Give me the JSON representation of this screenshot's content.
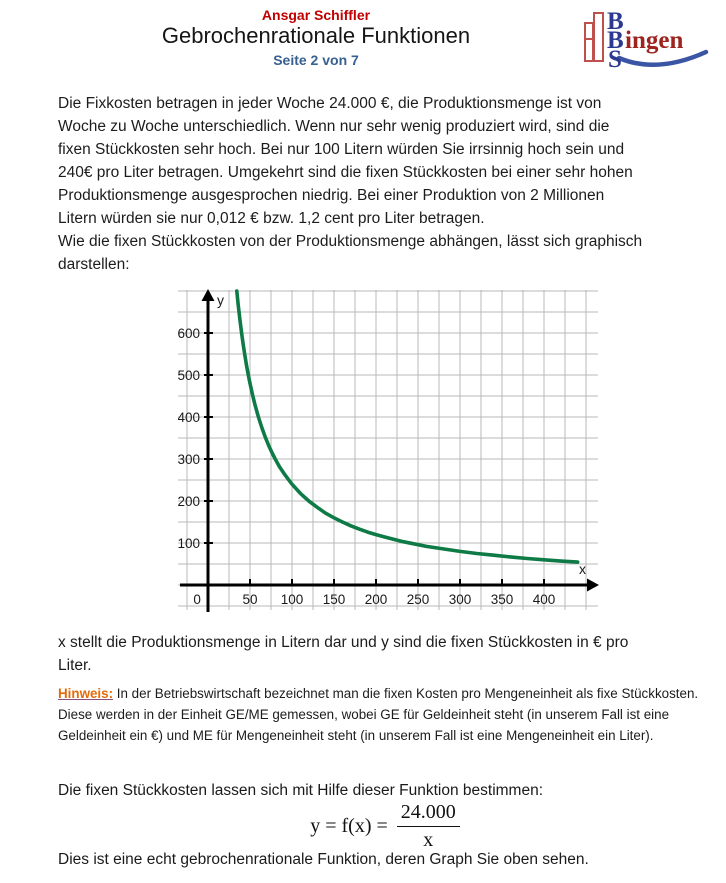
{
  "theme": {
    "text": "#1a1a1a",
    "accent_red": "#c00000",
    "accent_blue": "#376092",
    "hinweis_orange": "#e36c0a",
    "hinweis_underline": "#8a4f7d",
    "logo_blue": "#2b3990",
    "logo_red": "#9e2420",
    "tower_red": "#c0504d",
    "swoosh_blue": "#3b55a5"
  },
  "header": {
    "author": "Ansgar Schiffler",
    "title": "Gebrochenrationale Funktionen",
    "page_info": "Seite 2 von 7"
  },
  "logo": {
    "letter_top": "B",
    "letter_mid": "B",
    "letter_bottom": "S",
    "suffix": "ingen"
  },
  "intro": {
    "lines": [
      "Die Fixkosten betragen in jeder Woche 24.000 €, die Produktionsmenge ist von",
      "Woche zu Woche unterschiedlich. Wenn nur sehr wenig produziert wird, sind die",
      "fixen Stückkosten sehr hoch. Bei nur 100 Litern würden Sie irrsinnig hoch sein und",
      "240€ pro Liter betragen. Umgekehrt sind die fixen Stückkosten bei einer sehr hohen",
      "Produktionsmenge ausgesprochen niedrig. Bei einer Produktion von 2 Millionen",
      "Litern würden sie nur 0,012 € bzw. 1,2 cent pro Liter betragen.",
      "Wie die fixen Stückkosten von der Produktionsmenge abhängen, lässt sich graphisch",
      "darstellen:"
    ]
  },
  "chart_data": {
    "type": "line",
    "title": "",
    "xlabel": "x",
    "ylabel": "y",
    "function": "y = 24000 / x",
    "xlim": [
      -36,
      469
    ],
    "ylim": [
      -64,
      707
    ],
    "x_tick_labels": [
      50,
      100,
      150,
      200,
      250,
      300,
      350,
      400
    ],
    "origin_label": "0",
    "y_tick_labels": [
      100,
      200,
      300,
      400,
      500,
      600
    ],
    "x_grid_step": 25,
    "y_grid_step": 50,
    "grid": true,
    "legend": "none",
    "colors": {
      "curve": "#0e7a46",
      "grid": "#b9b9b9",
      "axis": "#000000",
      "tick_text": "#1a1a1a"
    },
    "series": [
      {
        "name": "fixe Stückkosten y = 24000/x",
        "points": [
          [
            34.3,
            700
          ],
          [
            35,
            686
          ],
          [
            36,
            667
          ],
          [
            38,
            632
          ],
          [
            40,
            600
          ],
          [
            42,
            571
          ],
          [
            44,
            545
          ],
          [
            46,
            522
          ],
          [
            48,
            500
          ],
          [
            50,
            480
          ],
          [
            53,
            453
          ],
          [
            56,
            429
          ],
          [
            60,
            400
          ],
          [
            64,
            375
          ],
          [
            68,
            353
          ],
          [
            72,
            333
          ],
          [
            76,
            316
          ],
          [
            80,
            300
          ],
          [
            85,
            282
          ],
          [
            90,
            267
          ],
          [
            95,
            253
          ],
          [
            100,
            240
          ],
          [
            110,
            218
          ],
          [
            120,
            200
          ],
          [
            130,
            185
          ],
          [
            140,
            171
          ],
          [
            150,
            160
          ],
          [
            160,
            150
          ],
          [
            170,
            141
          ],
          [
            180,
            133
          ],
          [
            190,
            126
          ],
          [
            200,
            120
          ],
          [
            215,
            112
          ],
          [
            230,
            104
          ],
          [
            245,
            98
          ],
          [
            260,
            92
          ],
          [
            280,
            86
          ],
          [
            300,
            80
          ],
          [
            320,
            75
          ],
          [
            340,
            71
          ],
          [
            360,
            67
          ],
          [
            380,
            63
          ],
          [
            400,
            60
          ],
          [
            420,
            57
          ],
          [
            440,
            54.5
          ]
        ]
      }
    ]
  },
  "caption": {
    "lines": [
      "x stellt die Produktionsmenge in Litern dar und y sind die fixen Stückkosten in € pro",
      "Liter."
    ]
  },
  "hinweis": {
    "label": "Hinweis:",
    "text": "In der Betriebswirtschaft bezeichnet man die fixen Kosten pro Mengeneinheit als fixe Stückkosten.  Diese werden in der Einheit GE/ME gemessen, wobei GE für Geldeinheit steht (in unserem Fall ist eine Geldeinheit ein €) und ME für Mengeneinheit steht (in unserem Fall ist eine Mengeneinheit ein Liter)."
  },
  "closing": {
    "intro_line": "Die fixen Stückkosten lassen sich mit Hilfe dieser Funktion bestimmen:",
    "formula": {
      "lhs": "y = f(x) =",
      "numerator": "24.000",
      "denominator": "x"
    },
    "outro_line": "Dies ist eine echt gebrochenrationale Funktion, deren Graph Sie oben sehen."
  }
}
